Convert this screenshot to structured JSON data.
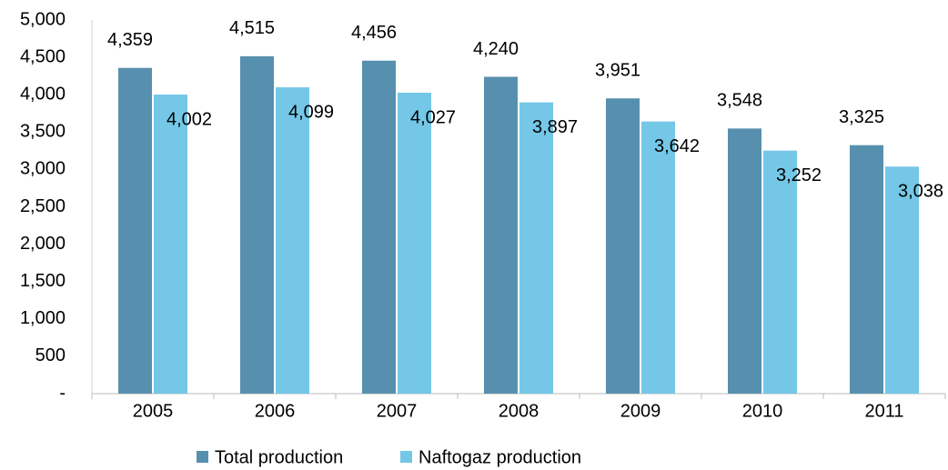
{
  "chart_data": {
    "type": "bar",
    "categories": [
      "2005",
      "2006",
      "2007",
      "2008",
      "2009",
      "2010",
      "2011"
    ],
    "series": [
      {
        "name": "Total production",
        "color": "#5790ae",
        "values": [
          4359,
          4515,
          4456,
          4240,
          3951,
          3548,
          3325
        ],
        "value_labels": [
          "4,359",
          "4,515",
          "4,456",
          "4,240",
          "3,951",
          "3,548",
          "3,325"
        ]
      },
      {
        "name": "Naftogaz production",
        "color": "#74c7e7",
        "values": [
          4002,
          4099,
          4027,
          3897,
          3642,
          3252,
          3038
        ],
        "value_labels": [
          "4,002",
          "4,099",
          "4,027",
          "3,897",
          "3,642",
          "3,252",
          "3,038"
        ]
      }
    ],
    "ylim": [
      0,
      5000
    ],
    "yticks": [
      {
        "value": 0,
        "label": "-"
      },
      500,
      {
        "value": 1000,
        "label": "1,000"
      },
      {
        "value": 1500,
        "label": "1,500"
      },
      {
        "value": 2000,
        "label": "2,000"
      },
      {
        "value": 2500,
        "label": "2,500"
      },
      {
        "value": 3000,
        "label": "3,000"
      },
      {
        "value": 3500,
        "label": "3,500"
      },
      {
        "value": 4000,
        "label": "4,000"
      },
      {
        "value": 4500,
        "label": "4,500"
      },
      {
        "value": 5000,
        "label": "5,000"
      }
    ],
    "grid": false,
    "legend": "bottom"
  }
}
